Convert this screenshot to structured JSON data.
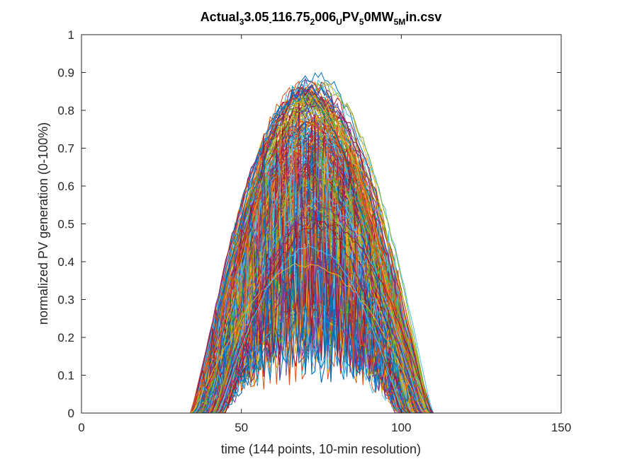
{
  "chart_data": {
    "type": "line",
    "title_parts": [
      {
        "text": "Actual",
        "sub": false
      },
      {
        "text": "3",
        "sub": true
      },
      {
        "text": "3.05",
        "sub": false
      },
      {
        "text": "-",
        "sub": true
      },
      {
        "text": "116.75",
        "sub": false
      },
      {
        "text": "2",
        "sub": true
      },
      {
        "text": "006",
        "sub": false
      },
      {
        "text": "U",
        "sub": true
      },
      {
        "text": "PV",
        "sub": false
      },
      {
        "text": "5",
        "sub": true
      },
      {
        "text": "0MW",
        "sub": false
      },
      {
        "text": "5M",
        "sub": true
      },
      {
        "text": "in.csv",
        "sub": false
      }
    ],
    "xlabel": "time (144 points, 10-min resolution)",
    "ylabel": "normalized PV generation (0-100%)",
    "xlim": [
      0,
      150
    ],
    "ylim": [
      0,
      1
    ],
    "xticks": [
      "0",
      "50",
      "100",
      "150"
    ],
    "yticks": [
      "0",
      "0.1",
      "0.2",
      "0.3",
      "0.4",
      "0.5",
      "0.6",
      "0.7",
      "0.8",
      "0.9",
      "1"
    ],
    "grid": false,
    "n_points": 144,
    "series_colors": [
      "#0072BD",
      "#D95319",
      "#EDB120",
      "#7E2F8E",
      "#77AC30",
      "#4DBEEE",
      "#A2142F"
    ],
    "profile_shape": {
      "sunrise_start_range": [
        34,
        45
      ],
      "peak_time_range": [
        62,
        80
      ],
      "sunset_end_range": [
        98,
        110
      ],
      "peak_value_range": [
        0.25,
        0.89
      ],
      "max_peak": 0.91
    },
    "n_series": 365
  }
}
